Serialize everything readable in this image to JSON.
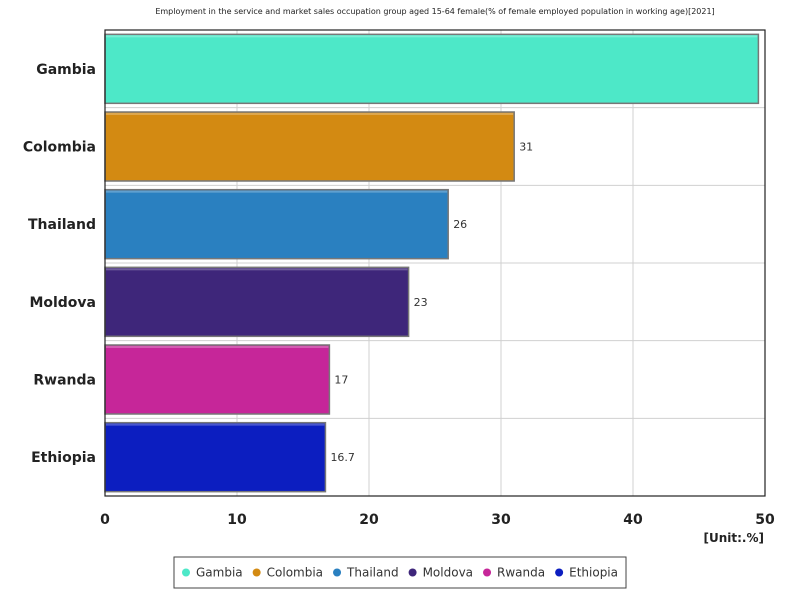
{
  "chart_data": {
    "type": "bar",
    "orientation": "horizontal",
    "title": "Employment in the service and market sales occupation group aged 15-64 female(% of female employed population in working age)[2021]",
    "unit_label": "[Unit:.%]",
    "categories": [
      "Gambia",
      "Colombia",
      "Thailand",
      "Moldova",
      "Rwanda",
      "Ethiopia"
    ],
    "values": [
      49.5,
      31,
      26,
      23,
      17,
      16.7
    ],
    "value_labels": [
      "",
      "31",
      "26",
      "23",
      "17",
      "16.7"
    ],
    "colors": [
      "#4de8c8",
      "#d38a12",
      "#2a80c0",
      "#3e267a",
      "#c62699",
      "#0c1ec0"
    ],
    "xlim": [
      0,
      50
    ],
    "xticks": [
      "0",
      "10",
      "20",
      "30",
      "40",
      "50"
    ],
    "grid": true,
    "legend": {
      "placement": "bottom-center",
      "entries": [
        "Gambia",
        "Colombia",
        "Thailand",
        "Moldova",
        "Rwanda",
        "Ethiopia"
      ]
    }
  }
}
